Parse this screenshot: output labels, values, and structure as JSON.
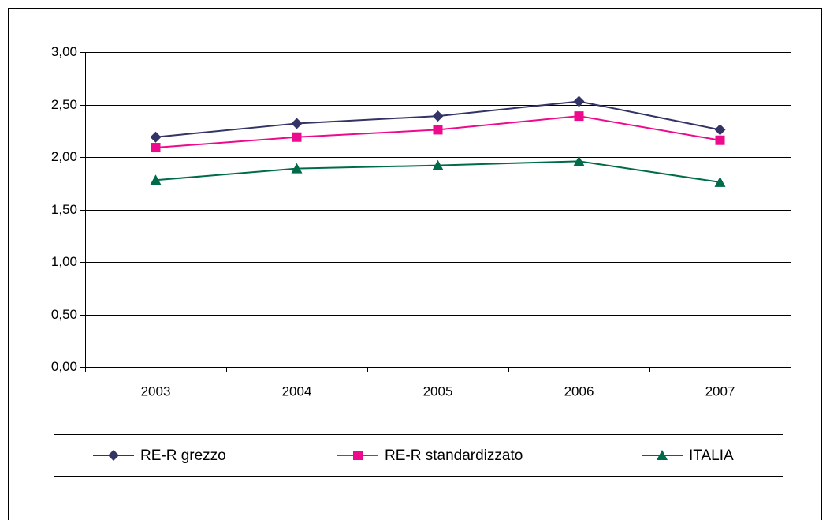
{
  "chart_data": {
    "type": "line",
    "categories": [
      "2003",
      "2004",
      "2005",
      "2006",
      "2007"
    ],
    "series": [
      {
        "name": "RE-R grezzo",
        "color": "#333366",
        "marker": "diamond",
        "values": [
          2.19,
          2.32,
          2.39,
          2.53,
          2.26
        ]
      },
      {
        "name": "RE-R standardizzato",
        "color": "#ee0a8c",
        "marker": "square",
        "values": [
          2.09,
          2.19,
          2.26,
          2.39,
          2.16
        ]
      },
      {
        "name": "ITALIA",
        "color": "#006b4a",
        "marker": "triangle",
        "values": [
          1.78,
          1.89,
          1.92,
          1.96,
          1.76
        ]
      }
    ],
    "ylim": [
      0,
      3
    ],
    "yticks": [
      {
        "value": 0,
        "label": "0,00"
      },
      {
        "value": 0.5,
        "label": "0,50"
      },
      {
        "value": 1,
        "label": "1,00"
      },
      {
        "value": 1.5,
        "label": "1,50"
      },
      {
        "value": 2,
        "label": "2,00"
      },
      {
        "value": 2.5,
        "label": "2,50"
      },
      {
        "value": 3,
        "label": "3,00"
      }
    ],
    "grid": true,
    "legend": "bottom"
  }
}
